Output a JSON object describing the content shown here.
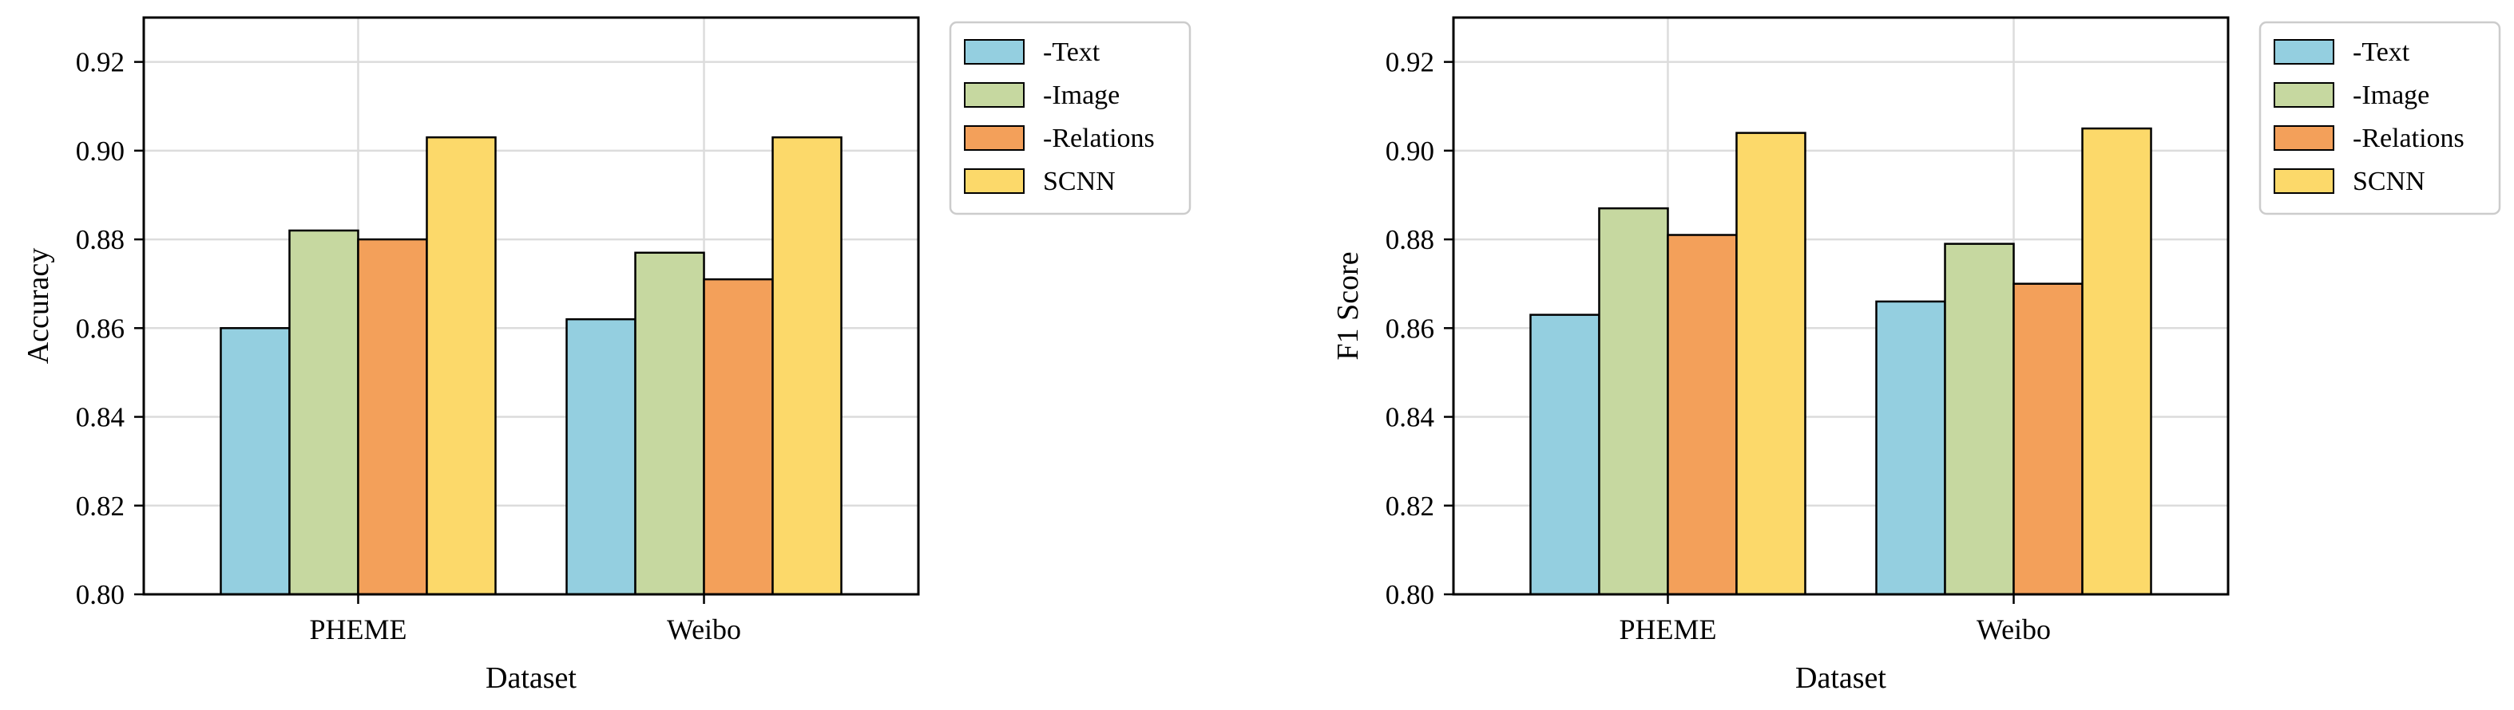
{
  "chart_data": [
    {
      "type": "bar",
      "title": "",
      "xlabel": "Dataset",
      "ylabel": "Accuracy",
      "ylim": [
        0.8,
        0.93
      ],
      "yticks": [
        0.8,
        0.82,
        0.84,
        0.86,
        0.88,
        0.9,
        0.92
      ],
      "grid": true,
      "legend_position": "outside-right-top",
      "categories": [
        "PHEME",
        "Weibo"
      ],
      "series": [
        {
          "name": "-Text",
          "color": "#94cfe0",
          "values": [
            0.86,
            0.862
          ]
        },
        {
          "name": "-Image",
          "color": "#c6d8a0",
          "values": [
            0.882,
            0.877
          ]
        },
        {
          "name": "-Relations",
          "color": "#f3a05a",
          "values": [
            0.88,
            0.871
          ]
        },
        {
          "name": "SCNN",
          "color": "#fcd96a",
          "values": [
            0.903,
            0.903
          ]
        }
      ]
    },
    {
      "type": "bar",
      "title": "",
      "xlabel": "Dataset",
      "ylabel": "F1 Score",
      "ylim": [
        0.8,
        0.93
      ],
      "yticks": [
        0.8,
        0.82,
        0.84,
        0.86,
        0.88,
        0.9,
        0.92
      ],
      "grid": true,
      "legend_position": "outside-right-top",
      "categories": [
        "PHEME",
        "Weibo"
      ],
      "series": [
        {
          "name": "-Text",
          "color": "#94cfe0",
          "values": [
            0.863,
            0.866
          ]
        },
        {
          "name": "-Image",
          "color": "#c6d8a0",
          "values": [
            0.887,
            0.879
          ]
        },
        {
          "name": "-Relations",
          "color": "#f3a05a",
          "values": [
            0.881,
            0.87
          ]
        },
        {
          "name": "SCNN",
          "color": "#fcd96a",
          "values": [
            0.904,
            0.905
          ]
        }
      ]
    }
  ]
}
